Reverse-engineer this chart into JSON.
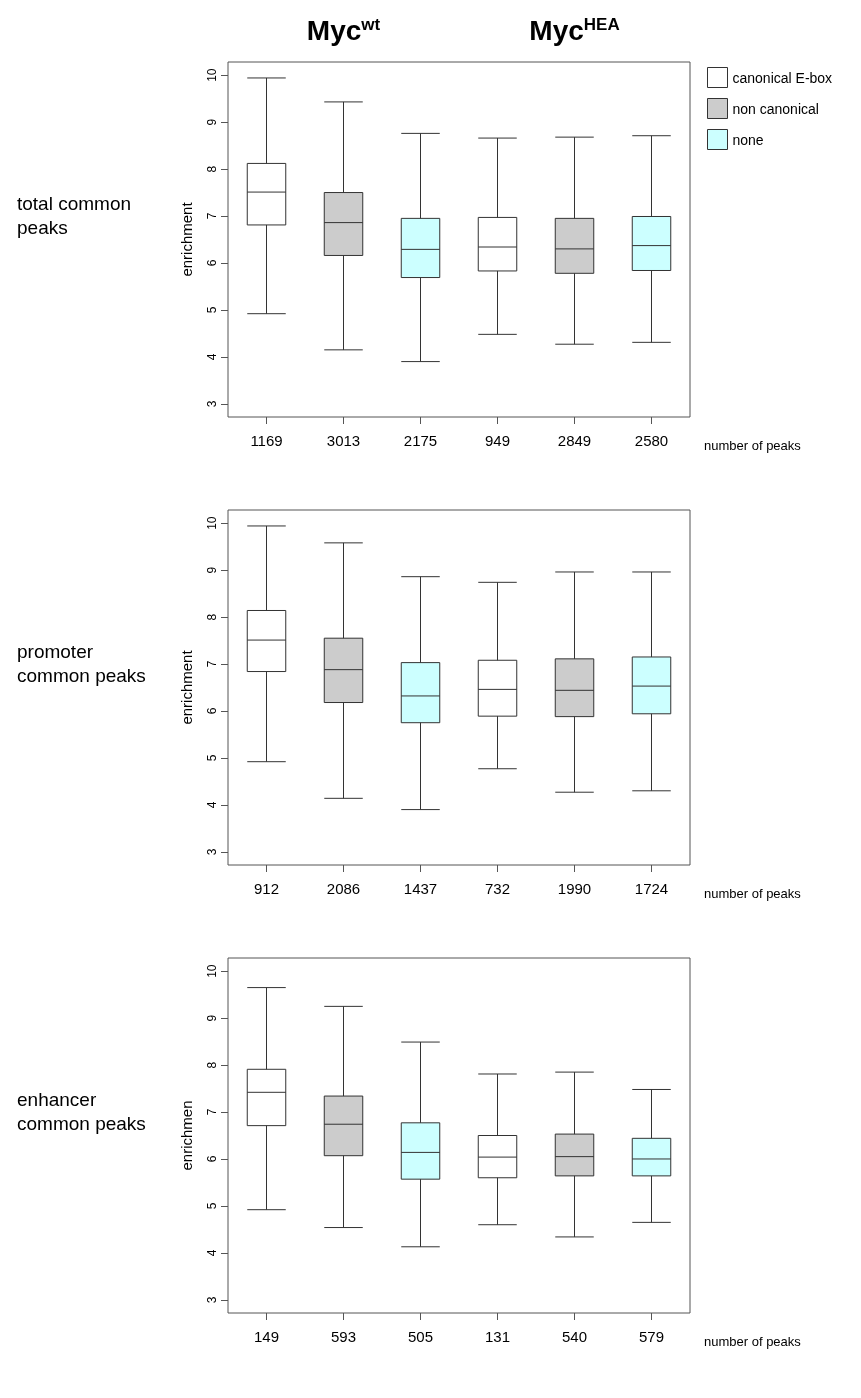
{
  "chart_data": [
    {
      "type": "box",
      "title": "total common peaks",
      "xlabel": "number of peaks",
      "ylabel": "enrichment",
      "annotations": [
        "Myc$^{wt}$",
        "Myc$^{HEA}$"
      ],
      "categories": [
        "1169",
        "3013",
        "2175",
        "949",
        "2849",
        "2580"
      ],
      "ylim": [
        2.72,
        10.28
      ],
      "yticks": [
        3,
        4,
        5,
        6,
        7,
        8,
        9,
        10
      ],
      "grid": false,
      "legend": "top right",
      "series": [
        {
          "name": "canonical E-box",
          "color": "#ffffff",
          "boxes": [
            {
              "low": 4.92,
              "q1": 6.81,
              "median": 7.51,
              "q3": 8.12,
              "high": 9.94
            },
            null,
            null,
            {
              "low": 4.48,
              "q1": 5.83,
              "median": 6.34,
              "q3": 6.97,
              "high": 8.66
            },
            null,
            null
          ]
        },
        {
          "name": "non canonical",
          "color": "#cccccc",
          "boxes": [
            null,
            {
              "low": 4.15,
              "q1": 6.16,
              "median": 6.86,
              "q3": 7.5,
              "high": 9.43
            },
            null,
            null,
            {
              "low": 4.27,
              "q1": 5.78,
              "median": 6.3,
              "q3": 6.95,
              "high": 8.68
            },
            null
          ]
        },
        {
          "name": "none",
          "color": "#ccffff",
          "boxes": [
            null,
            null,
            {
              "low": 3.9,
              "q1": 5.69,
              "median": 6.29,
              "q3": 6.95,
              "high": 8.76
            },
            null,
            null,
            {
              "low": 4.31,
              "q1": 5.84,
              "median": 6.37,
              "q3": 6.99,
              "high": 8.71
            }
          ]
        }
      ]
    },
    {
      "type": "box",
      "title": "promoter common peaks",
      "xlabel": "number of peaks",
      "ylabel": "enrichment",
      "categories": [
        "912",
        "2086",
        "1437",
        "732",
        "1990",
        "1724"
      ],
      "ylim": [
        2.72,
        10.28
      ],
      "yticks": [
        3,
        4,
        5,
        6,
        7,
        8,
        9,
        10
      ],
      "grid": false,
      "legend": false,
      "series": [
        {
          "color": "#ffffff",
          "boxes": [
            {
              "low": 4.92,
              "q1": 6.84,
              "median": 7.51,
              "q3": 8.14,
              "high": 9.94
            },
            null,
            null,
            {
              "low": 4.77,
              "q1": 5.89,
              "median": 6.46,
              "q3": 7.08,
              "high": 8.74
            },
            null,
            null
          ]
        },
        {
          "color": "#cccccc",
          "boxes": [
            null,
            {
              "low": 4.14,
              "q1": 6.18,
              "median": 6.88,
              "q3": 7.55,
              "high": 9.58
            },
            null,
            null,
            {
              "low": 4.27,
              "q1": 5.88,
              "median": 6.44,
              "q3": 7.11,
              "high": 8.96
            },
            null
          ]
        },
        {
          "color": "#ccffff",
          "boxes": [
            null,
            null,
            {
              "low": 3.9,
              "q1": 5.75,
              "median": 6.32,
              "q3": 7.03,
              "high": 8.86
            },
            null,
            null,
            {
              "low": 4.3,
              "q1": 5.94,
              "median": 6.53,
              "q3": 7.15,
              "high": 8.96
            }
          ]
        }
      ]
    },
    {
      "type": "box",
      "title": "enhancer common peaks",
      "xlabel": "number of peaks",
      "ylabel": "enrichmen",
      "categories": [
        "149",
        "593",
        "505",
        "131",
        "540",
        "579"
      ],
      "ylim": [
        2.72,
        10.28
      ],
      "yticks": [
        3,
        4,
        5,
        6,
        7,
        8,
        9,
        10
      ],
      "grid": false,
      "legend": false,
      "series": [
        {
          "color": "#ffffff",
          "boxes": [
            {
              "low": 4.92,
              "q1": 6.71,
              "median": 7.42,
              "q3": 7.91,
              "high": 9.65
            },
            null,
            null,
            {
              "low": 4.6,
              "q1": 5.6,
              "median": 6.04,
              "q3": 6.5,
              "high": 7.81
            },
            null,
            null
          ]
        },
        {
          "color": "#cccccc",
          "boxes": [
            null,
            {
              "low": 4.54,
              "q1": 6.07,
              "median": 6.74,
              "q3": 7.34,
              "high": 9.25
            },
            null,
            null,
            {
              "low": 4.34,
              "q1": 5.64,
              "median": 6.05,
              "q3": 6.53,
              "high": 7.85
            },
            null
          ]
        },
        {
          "color": "#ccffff",
          "boxes": [
            null,
            null,
            {
              "low": 4.13,
              "q1": 5.57,
              "median": 6.14,
              "q3": 6.77,
              "high": 8.49
            },
            null,
            null,
            {
              "low": 4.65,
              "q1": 5.64,
              "median": 6.0,
              "q3": 6.44,
              "high": 7.48
            }
          ]
        }
      ]
    }
  ]
}
